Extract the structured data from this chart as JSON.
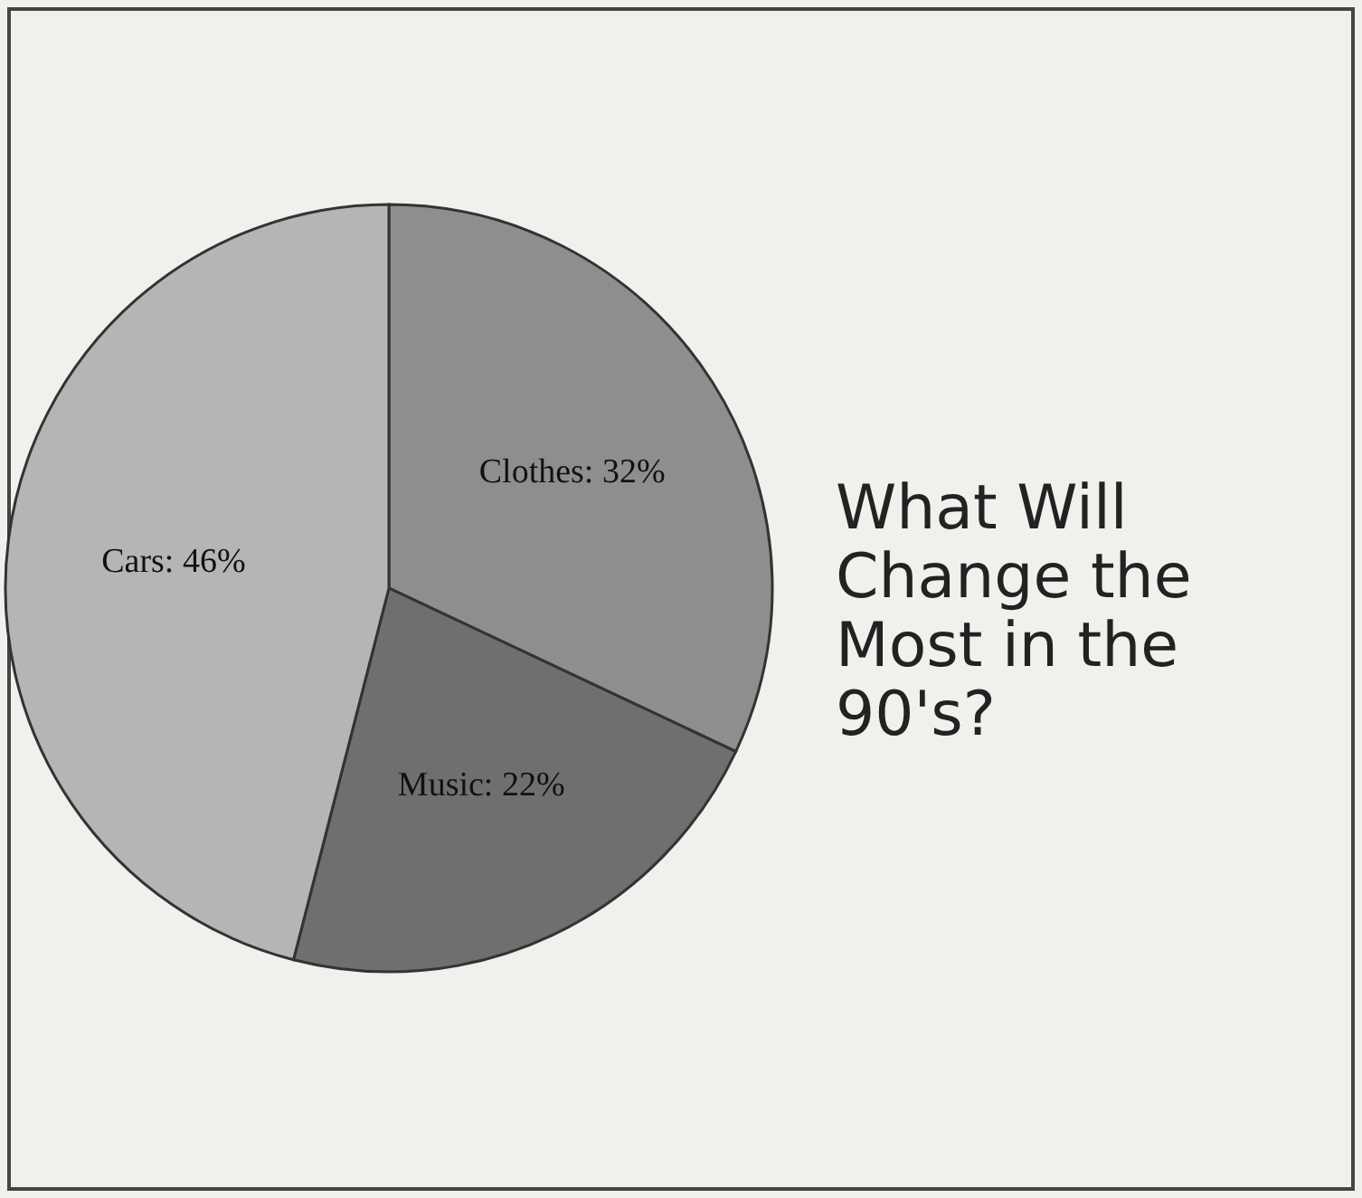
{
  "chart_data": {
    "type": "pie",
    "title": "What Will Change the Most in the 90's?",
    "categories": [
      "Clothes",
      "Music",
      "Cars"
    ],
    "values": [
      32,
      22,
      46
    ],
    "value_labels": [
      "32%",
      "22%",
      "46%"
    ],
    "colors": [
      "#8e8e8e",
      "#6f6f6f",
      "#b5b5b5"
    ],
    "legend": false
  }
}
